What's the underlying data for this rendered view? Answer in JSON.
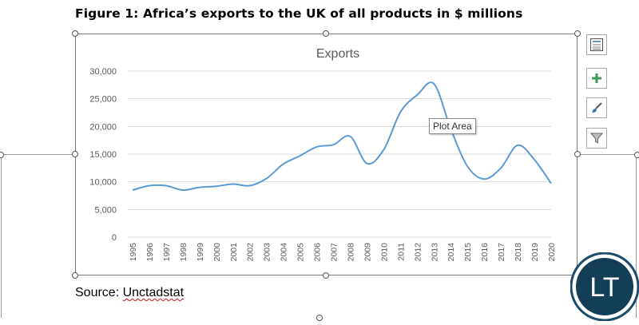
{
  "figure_title": "Figure 1: Africa’s exports to the UK of all products in $ millions",
  "source_prefix": "Source: ",
  "source_name": "Unctadstat",
  "tooltip": "Plot Area",
  "toolbar": {
    "buttons": [
      {
        "name": "chart-elements-layout-button",
        "icon": "layout-icon"
      },
      {
        "name": "add-chart-element-button",
        "icon": "plus-icon"
      },
      {
        "name": "chart-styles-button",
        "icon": "brush-icon"
      },
      {
        "name": "chart-filters-button",
        "icon": "filter-icon"
      }
    ]
  },
  "logo": {
    "text": "LT",
    "colors": {
      "ring": "#1a4d6b",
      "inner": "#123e58",
      "text": "#ffffff"
    }
  },
  "colors": {
    "line": "#5b9bd5",
    "grid": "#d9d9d9",
    "axis_text": "#595959",
    "title_text": "#595959"
  },
  "chart_data": {
    "type": "line",
    "title": "Exports",
    "xlabel": "",
    "ylabel": "",
    "ylim": [
      0,
      30000
    ],
    "yticks": [
      "0",
      "5,000",
      "10,000",
      "15,000",
      "20,000",
      "25,000",
      "30,000"
    ],
    "grid": true,
    "legend": "none",
    "x": [
      "1995",
      "1996",
      "1997",
      "1998",
      "1999",
      "2000",
      "2001",
      "2002",
      "2003",
      "2004",
      "2005",
      "2006",
      "2007",
      "2008",
      "2009",
      "2010",
      "2011",
      "2012",
      "2013",
      "2014",
      "2015",
      "2016",
      "2017",
      "2018",
      "2019",
      "2020"
    ],
    "series": [
      {
        "values": [
          8500,
          9300,
          9300,
          8500,
          9000,
          9200,
          9600,
          9300,
          10600,
          13200,
          14700,
          16300,
          16700,
          18200,
          13300,
          15800,
          22600,
          25700,
          27700,
          19600,
          12800,
          10500,
          12500,
          16600,
          14000,
          9700
        ]
      }
    ]
  }
}
